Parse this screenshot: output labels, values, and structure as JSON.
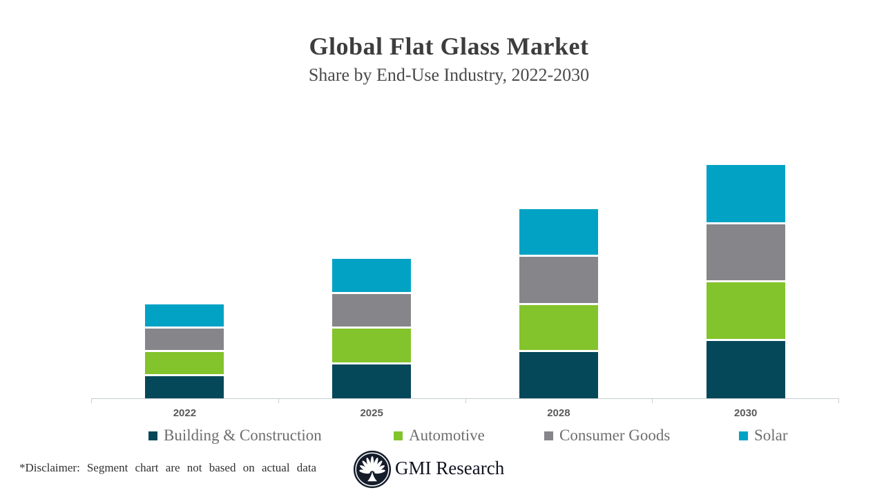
{
  "header": {
    "title": "Global Flat Glass Market",
    "subtitle": "Share by End-Use Industry, 2022-2030"
  },
  "chart_data": {
    "type": "bar",
    "stacked": true,
    "categories": [
      "2022",
      "2025",
      "2028",
      "2030"
    ],
    "series": [
      {
        "name": "Building & Construction",
        "color": "#05485a",
        "values": [
          32,
          49,
          67,
          83
        ]
      },
      {
        "name": "Automotive",
        "color": "#83c32b",
        "values": [
          32,
          49,
          65,
          82
        ]
      },
      {
        "name": "Consumer Goods",
        "color": "#86868a",
        "values": [
          31,
          47,
          67,
          81
        ]
      },
      {
        "name": "Solar",
        "color": "#02a2c5",
        "values": [
          32,
          48,
          66,
          83
        ]
      }
    ],
    "title": "Global Flat Glass Market",
    "subtitle": "Share by End-Use Industry, 2022-2030",
    "xlabel": "",
    "ylabel": "",
    "value_axis_labels_visible": false,
    "grid": false,
    "legend_position": "bottom",
    "axis_color": "#c9cdd1"
  },
  "footer": {
    "disclaimer_label": "*Disclaimer:",
    "disclaimer_text": "Segment chart are not based on actual data",
    "brand": "GMI Research"
  }
}
